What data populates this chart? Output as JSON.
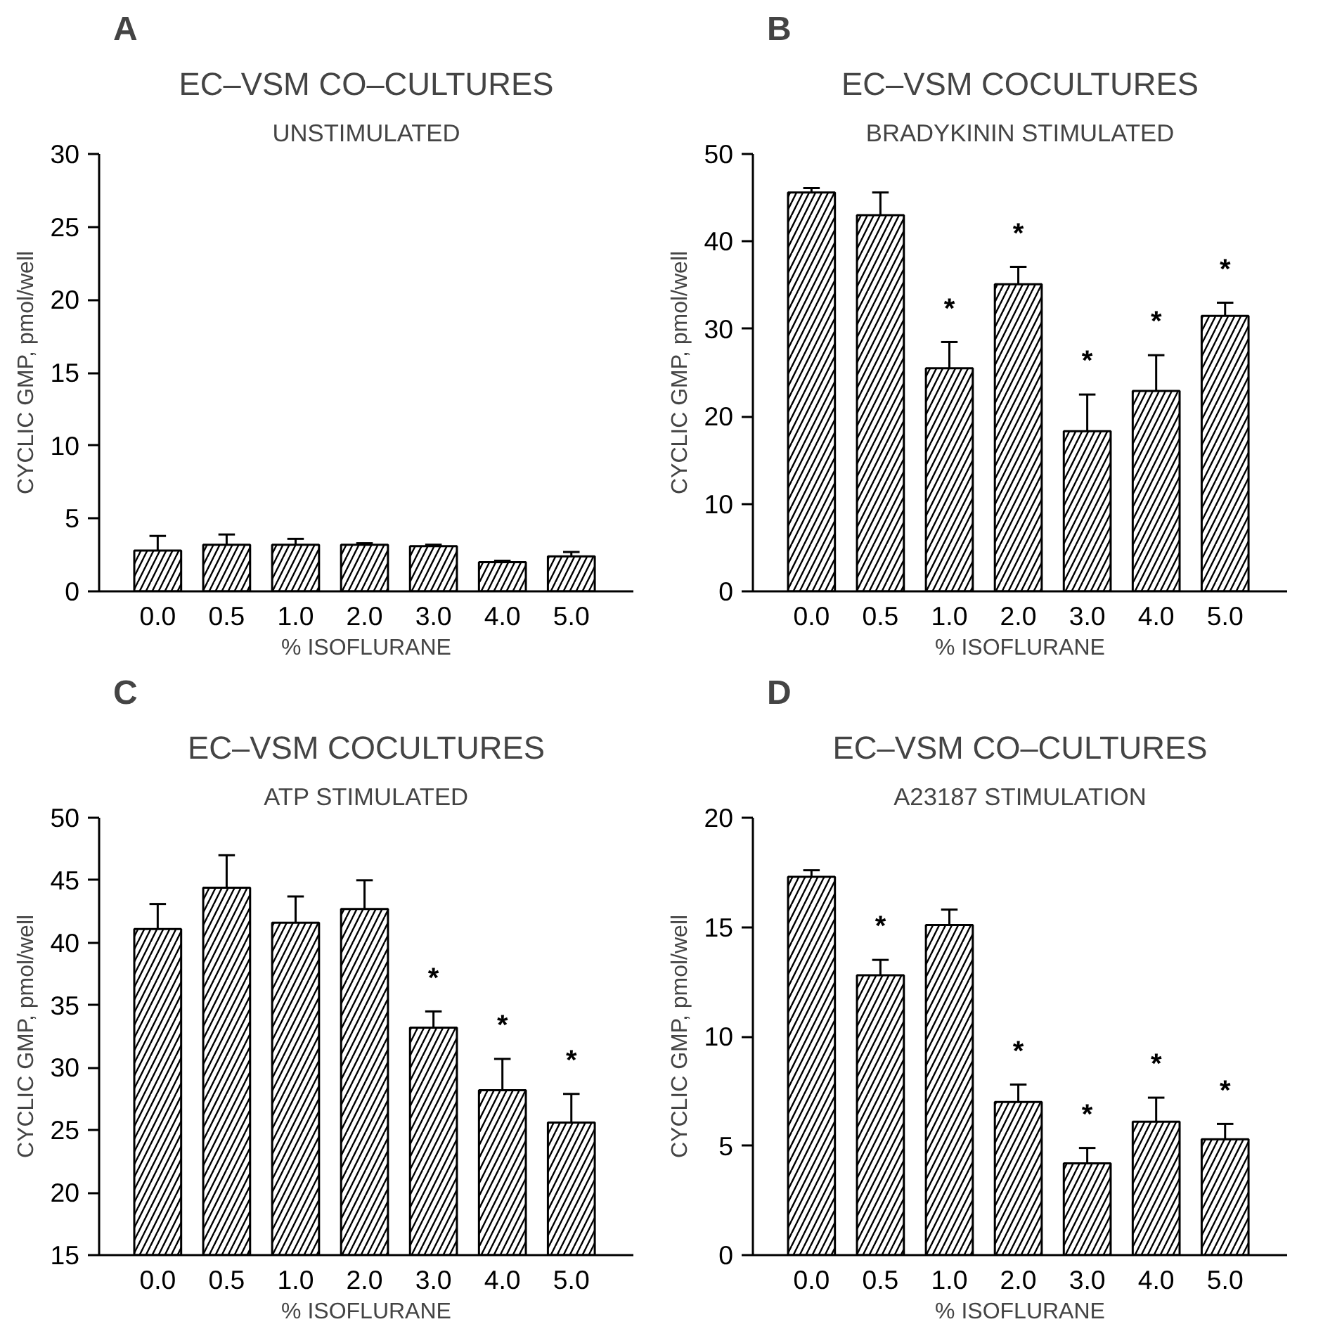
{
  "chart_data": [
    {
      "type": "bar",
      "title": "EC–VSM CO–CULTURES",
      "subtitle": "UNSTIMULATED",
      "xlabel": "% ISOFLURANE",
      "ylabel": "CYCLIC GMP, pmol/well",
      "categories": [
        "0.0",
        "0.5",
        "1.0",
        "2.0",
        "3.0",
        "4.0",
        "5.0"
      ],
      "values": [
        2.8,
        3.2,
        3.2,
        3.2,
        3.1,
        2.0,
        2.4
      ],
      "errors": [
        1.0,
        0.7,
        0.4,
        0.1,
        0.1,
        0.1,
        0.3
      ],
      "color": "#ffffff",
      "ylim": [
        0,
        30
      ],
      "yticks": [
        0,
        5,
        10,
        15,
        20,
        25,
        30
      ],
      "grid": false,
      "annotations": [
        "A"
      ]
    },
    {
      "type": "bar",
      "title": "EC–VSM COCULTURES",
      "subtitle": "BRADYKININ STIMULATED",
      "xlabel": "% ISOFLURANE",
      "ylabel": "CYCLIC GMP, pmol/well",
      "categories": [
        "0.0",
        "0.5",
        "1.0",
        "2.0",
        "3.0",
        "4.0",
        "5.0"
      ],
      "values": [
        45.6,
        43.0,
        25.5,
        35.1,
        18.3,
        22.9,
        31.5
      ],
      "errors": [
        0.5,
        2.6,
        3.0,
        2.0,
        4.2,
        4.1,
        1.5
      ],
      "color": "#ffffff",
      "ylim": [
        0,
        50
      ],
      "yticks": [
        0,
        10,
        20,
        30,
        40,
        50
      ],
      "grid": false,
      "value_labels": [
        null,
        null,
        "*",
        "*",
        "*",
        "*",
        "*"
      ],
      "annotations": [
        "B"
      ]
    },
    {
      "type": "bar",
      "title": "EC–VSM COCULTURES",
      "subtitle": "ATP STIMULATED",
      "xlabel": "% ISOFLURANE",
      "ylabel": "CYCLIC GMP, pmol/well",
      "categories": [
        "0.0",
        "0.5",
        "1.0",
        "2.0",
        "3.0",
        "4.0",
        "5.0"
      ],
      "values": [
        41.1,
        44.4,
        41.6,
        42.7,
        33.2,
        28.2,
        25.6
      ],
      "errors": [
        2.0,
        2.6,
        2.1,
        2.3,
        1.3,
        2.5,
        2.3
      ],
      "color": "#ffffff",
      "ylim": [
        15,
        50
      ],
      "yticks": [
        15,
        20,
        25,
        30,
        35,
        40,
        45,
        50
      ],
      "grid": false,
      "value_labels": [
        null,
        null,
        null,
        null,
        "*",
        "*",
        "*"
      ],
      "annotations": [
        "C"
      ]
    },
    {
      "type": "bar",
      "title": "EC–VSM CO–CULTURES",
      "subtitle": "A23187 STIMULATION",
      "xlabel": "% ISOFLURANE",
      "ylabel": "CYCLIC GMP, pmol/well",
      "categories": [
        "0.0",
        "0.5",
        "1.0",
        "2.0",
        "3.0",
        "4.0",
        "5.0"
      ],
      "values": [
        17.3,
        12.8,
        15.1,
        7.0,
        4.2,
        6.1,
        5.3
      ],
      "errors": [
        0.3,
        0.7,
        0.7,
        0.8,
        0.7,
        1.1,
        0.7
      ],
      "color": "#ffffff",
      "ylim": [
        0,
        20
      ],
      "yticks": [
        0,
        5,
        10,
        15,
        20
      ],
      "grid": false,
      "value_labels": [
        null,
        "*",
        null,
        "*",
        "*",
        "*",
        "*"
      ],
      "annotations": [
        "D"
      ]
    }
  ]
}
